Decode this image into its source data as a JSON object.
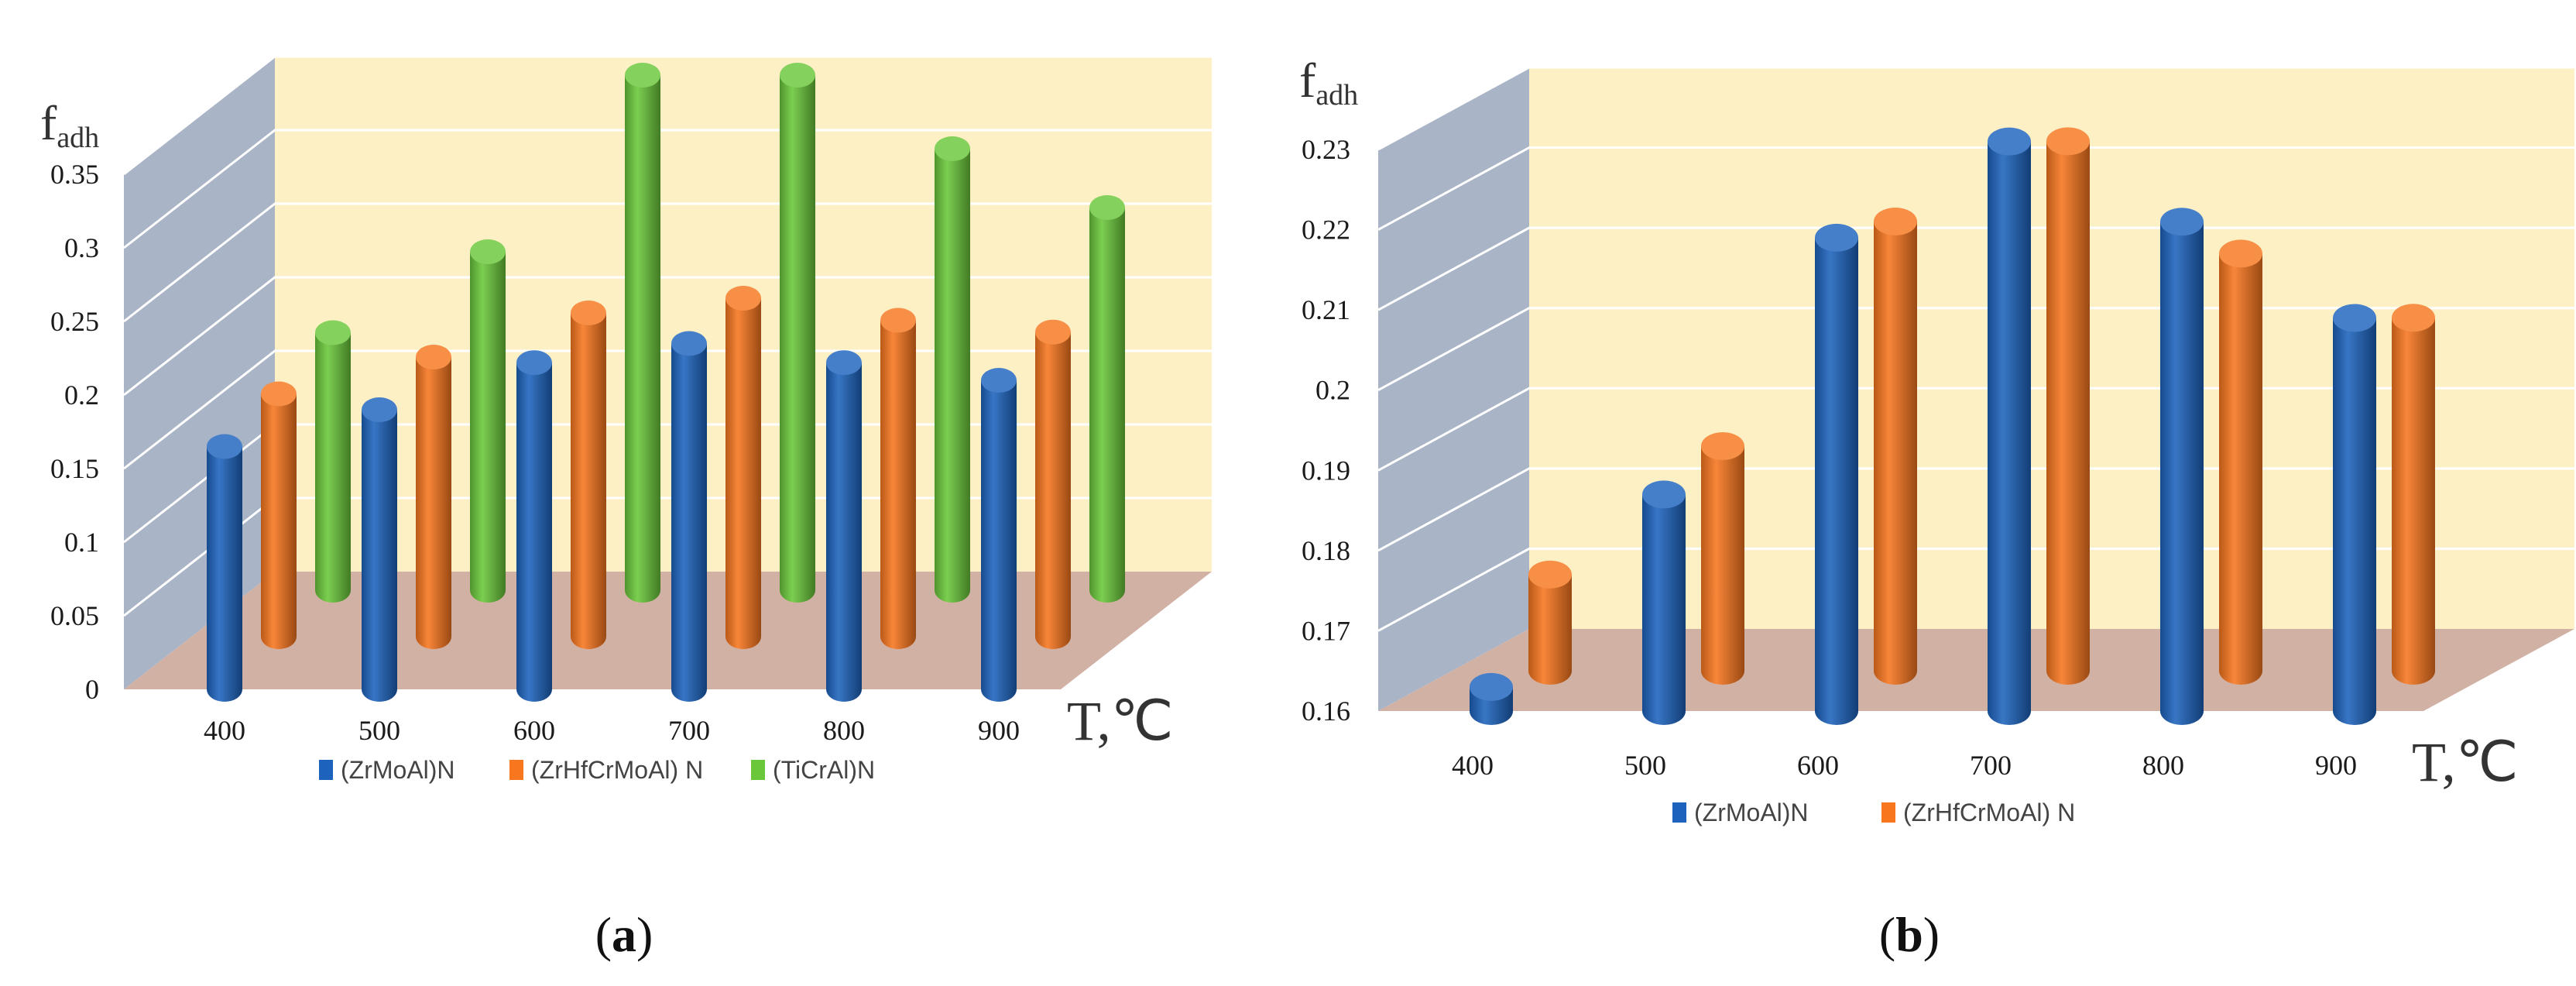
{
  "colors": {
    "back_wall": "#fdf0c4",
    "side_wall": "#a9b4c6",
    "floor": "#d2b1a5",
    "grid": "#ffffff",
    "series": [
      "#1d63bd",
      "#f7761e",
      "#6ac73a"
    ]
  },
  "chart_data": [
    {
      "type": "bar",
      "variant": "3d-cylinder",
      "panel_label": "a",
      "ylabel_main": "f",
      "ylabel_sub": "adh",
      "xlabel": "T,℃",
      "ylim": [
        0,
        0.35
      ],
      "yticks": [
        0,
        0.05,
        0.1,
        0.15,
        0.2,
        0.25,
        0.3,
        0.35
      ],
      "ytick_labels": [
        "0",
        "0.05",
        "0.1",
        "0.15",
        "0.2",
        "0.25",
        "0.3",
        "0.35"
      ],
      "categories": [
        "400",
        "500",
        "600",
        "700",
        "800",
        "900"
      ],
      "series": [
        {
          "name": "(ZrMoAl)N",
          "values": [
            0.165,
            0.19,
            0.222,
            0.235,
            0.222,
            0.21
          ]
        },
        {
          "name": "(ZrHfCrMoAl) N",
          "values": [
            0.165,
            0.19,
            0.22,
            0.23,
            0.215,
            0.207
          ]
        },
        {
          "name": "(TiCrAl)N",
          "values": [
            0.175,
            0.23,
            0.35,
            0.35,
            0.3,
            0.26
          ]
        }
      ],
      "legend_position": "bottom"
    },
    {
      "type": "bar",
      "variant": "3d-cylinder",
      "panel_label": "b",
      "ylabel_main": "f",
      "ylabel_sub": "adh",
      "xlabel": "T,℃",
      "ylim": [
        0.16,
        0.23
      ],
      "yticks": [
        0.16,
        0.17,
        0.18,
        0.19,
        0.2,
        0.21,
        0.22,
        0.23
      ],
      "ytick_labels": [
        "0.16",
        "0.17",
        "0.18",
        "0.19",
        "0.2",
        "0.21",
        "0.22",
        "0.23"
      ],
      "categories": [
        "400",
        "500",
        "600",
        "700",
        "800",
        "900"
      ],
      "series": [
        {
          "name": "(ZrMoAl)N",
          "values": [
            0.163,
            0.187,
            0.219,
            0.231,
            0.221,
            0.209
          ]
        },
        {
          "name": "(ZrHfCrMoAl) N",
          "values": [
            0.172,
            0.188,
            0.216,
            0.226,
            0.212,
            0.204
          ]
        }
      ],
      "legend_position": "bottom"
    }
  ]
}
